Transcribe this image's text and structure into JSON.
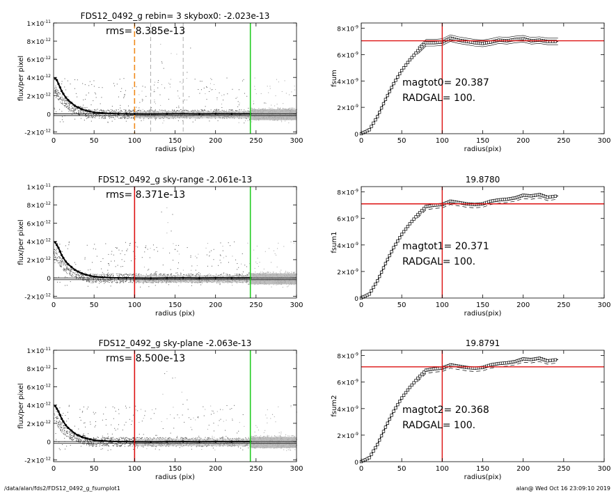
{
  "footer": {
    "path": "/data/alan/fds2/FDS12_0492_g_fsumplot1",
    "stamp": "alan@  Wed Oct 16 23:09:10 2019"
  },
  "chart_data": [
    {
      "type": "scatter",
      "title": "FDS12_0492_g rebin= 3    skybox0: -2.023e-13",
      "annotation": "rms= 8.385e-13",
      "xlabel": "radius (pix)",
      "ylabel": "flux/per pixel",
      "xlim": [
        0,
        300
      ],
      "ylim": [
        -2.2e-12,
        1e-11
      ],
      "x_ticks": [
        "0",
        "50",
        "100",
        "150",
        "200",
        "250",
        "300"
      ],
      "y_ticks": [
        {
          "value": 1e-11,
          "mant": "1×10",
          "exp": "-11"
        },
        {
          "value": 8e-12,
          "mant": "8×10",
          "exp": "-12"
        },
        {
          "value": 6e-12,
          "mant": "6×10",
          "exp": "-12"
        },
        {
          "value": 4e-12,
          "mant": "4×10",
          "exp": "-12"
        },
        {
          "value": 2e-12,
          "mant": "2×10",
          "exp": "-12"
        },
        {
          "value": 0,
          "mant": "0",
          "exp": ""
        },
        {
          "value": -2e-12,
          "mant": "-2×10",
          "exp": "-12"
        }
      ],
      "vlines": [
        {
          "x": 100,
          "color": "#f08a1c",
          "style": "dashed"
        },
        {
          "x": 120,
          "color": "#999999",
          "style": "dashed"
        },
        {
          "x": 160,
          "color": "#999999",
          "style": "dashed"
        },
        {
          "x": 243,
          "color": "#22cc22",
          "style": "solid"
        }
      ],
      "hlines": [
        0,
        -2e-13
      ],
      "profile": {
        "x": [
          2,
          4,
          6,
          8,
          10,
          12,
          15,
          18,
          22,
          26,
          30,
          35,
          40,
          45,
          50,
          60,
          70,
          80,
          90,
          100,
          120,
          140,
          160,
          180,
          200,
          220,
          243
        ],
        "y": [
          3.9e-12,
          3.7e-12,
          3.3e-12,
          2.9e-12,
          2.5e-12,
          2.2e-12,
          1.8e-12,
          1.5e-12,
          1.2e-12,
          9e-13,
          7e-13,
          5e-13,
          3.5e-13,
          2.5e-13,
          1.5e-13,
          8e-14,
          3e-14,
          0,
          0,
          -2e-14,
          -3e-14,
          -1e-14,
          0,
          -2e-14,
          0,
          -1e-14,
          0
        ]
      }
    },
    {
      "type": "line",
      "title": "",
      "annotation_lines": [
        "magtot0=  20.387",
        "RADGAL=    100."
      ],
      "xlabel": "radius(pix)",
      "ylabel": "fsum",
      "xlim": [
        0,
        300
      ],
      "ylim": [
        0,
        8.4e-09
      ],
      "x_ticks": [
        "0",
        "50",
        "100",
        "150",
        "200",
        "250",
        "300"
      ],
      "y_ticks": [
        {
          "value": 0,
          "mant": "0",
          "exp": ""
        },
        {
          "value": 2e-09,
          "mant": "2×10",
          "exp": "-9"
        },
        {
          "value": 4e-09,
          "mant": "4×10",
          "exp": "-9"
        },
        {
          "value": 6e-09,
          "mant": "6×10",
          "exp": "-9"
        },
        {
          "value": 8e-09,
          "mant": "8×10",
          "exp": "-9"
        }
      ],
      "hline": 7.05e-09,
      "vline": 100,
      "series": {
        "x": [
          0,
          10,
          20,
          30,
          40,
          50,
          60,
          70,
          80,
          90,
          100,
          110,
          120,
          130,
          140,
          150,
          160,
          170,
          180,
          190,
          200,
          210,
          220,
          230,
          243
        ],
        "y": [
          0,
          3e-10,
          1.3e-09,
          2.6e-09,
          3.8e-09,
          4.8e-09,
          5.6e-09,
          6.3e-09,
          6.9e-09,
          6.9e-09,
          6.95e-09,
          7.25e-09,
          7.1e-09,
          7e-09,
          6.9e-09,
          6.85e-09,
          6.95e-09,
          7.1e-09,
          7.05e-09,
          7.15e-09,
          7.2e-09,
          7.05e-09,
          7.1e-09,
          7e-09,
          7e-09
        ],
        "envelope": 2.5e-10
      }
    },
    {
      "type": "scatter",
      "title": "FDS12_0492_g sky-range -2.061e-13",
      "annotation": "rms= 8.371e-13",
      "xlabel": "radius (pix)",
      "ylabel": "flux/per pixel",
      "xlim": [
        0,
        300
      ],
      "ylim": [
        -2.2e-12,
        1e-11
      ],
      "x_ticks": [
        "0",
        "50",
        "100",
        "150",
        "200",
        "250",
        "300"
      ],
      "y_ticks": [
        {
          "value": 1e-11,
          "mant": "1×10",
          "exp": "-11"
        },
        {
          "value": 8e-12,
          "mant": "8×10",
          "exp": "-12"
        },
        {
          "value": 6e-12,
          "mant": "6×10",
          "exp": "-12"
        },
        {
          "value": 4e-12,
          "mant": "4×10",
          "exp": "-12"
        },
        {
          "value": 2e-12,
          "mant": "2×10",
          "exp": "-12"
        },
        {
          "value": 0,
          "mant": "0",
          "exp": ""
        },
        {
          "value": -2e-12,
          "mant": "-2×10",
          "exp": "-12"
        }
      ],
      "vlines": [
        {
          "x": 100,
          "color": "#dd1111",
          "style": "solid"
        },
        {
          "x": 243,
          "color": "#22cc22",
          "style": "solid"
        }
      ],
      "hlines": [
        0,
        -2e-13
      ],
      "profile": {
        "x": [
          2,
          4,
          6,
          8,
          10,
          12,
          15,
          18,
          22,
          26,
          30,
          35,
          40,
          45,
          50,
          60,
          70,
          80,
          90,
          100,
          120,
          140,
          160,
          180,
          200,
          220,
          243
        ],
        "y": [
          3.9e-12,
          3.6e-12,
          3.3e-12,
          2.9e-12,
          2.5e-12,
          2.2e-12,
          1.8e-12,
          1.5e-12,
          1.2e-12,
          9e-13,
          7e-13,
          5e-13,
          3.5e-13,
          2.5e-13,
          1.5e-13,
          8e-14,
          3e-14,
          0,
          0,
          -2e-14,
          -3e-14,
          -1e-14,
          0,
          -2e-14,
          0,
          -1e-14,
          0
        ]
      }
    },
    {
      "type": "line",
      "title": "19.8780",
      "annotation_lines": [
        "magtot1=  20.371",
        "RADGAL=    100."
      ],
      "xlabel": "radius(pix)",
      "ylabel": "fsum1",
      "xlim": [
        0,
        300
      ],
      "ylim": [
        0,
        8.4e-09
      ],
      "x_ticks": [
        "0",
        "50",
        "100",
        "150",
        "200",
        "250",
        "300"
      ],
      "y_ticks": [
        {
          "value": 0,
          "mant": "0",
          "exp": ""
        },
        {
          "value": 2e-09,
          "mant": "2×10",
          "exp": "-9"
        },
        {
          "value": 4e-09,
          "mant": "4×10",
          "exp": "-9"
        },
        {
          "value": 6e-09,
          "mant": "6×10",
          "exp": "-9"
        },
        {
          "value": 8e-09,
          "mant": "8×10",
          "exp": "-9"
        }
      ],
      "hline": 7.1e-09,
      "vline": 100,
      "series": {
        "x": [
          0,
          10,
          20,
          30,
          40,
          50,
          60,
          70,
          80,
          90,
          100,
          110,
          120,
          130,
          140,
          150,
          160,
          170,
          180,
          190,
          200,
          210,
          220,
          230,
          243
        ],
        "y": [
          0,
          3e-10,
          1.3e-09,
          2.6e-09,
          3.8e-09,
          4.8e-09,
          5.6e-09,
          6.3e-09,
          6.9e-09,
          7e-09,
          7.05e-09,
          7.3e-09,
          7.2e-09,
          7.1e-09,
          7.05e-09,
          7.1e-09,
          7.3e-09,
          7.4e-09,
          7.45e-09,
          7.55e-09,
          7.75e-09,
          7.7e-09,
          7.8e-09,
          7.6e-09,
          7.7e-09
        ]
      }
    },
    {
      "type": "scatter",
      "title": "FDS12_0492_g sky-plane -2.063e-13",
      "annotation": "rms= 8.500e-13",
      "xlabel": "radius (pix)",
      "ylabel": "flux/per pixel",
      "xlim": [
        0,
        300
      ],
      "ylim": [
        -2.2e-12,
        1e-11
      ],
      "x_ticks": [
        "0",
        "50",
        "100",
        "150",
        "200",
        "250",
        "300"
      ],
      "y_ticks": [
        {
          "value": 1e-11,
          "mant": "1×10",
          "exp": "-11"
        },
        {
          "value": 8e-12,
          "mant": "8×10",
          "exp": "-12"
        },
        {
          "value": 6e-12,
          "mant": "6×10",
          "exp": "-12"
        },
        {
          "value": 4e-12,
          "mant": "4×10",
          "exp": "-12"
        },
        {
          "value": 2e-12,
          "mant": "2×10",
          "exp": "-12"
        },
        {
          "value": 0,
          "mant": "0",
          "exp": ""
        },
        {
          "value": -2e-12,
          "mant": "-2×10",
          "exp": "-12"
        }
      ],
      "vlines": [
        {
          "x": 100,
          "color": "#dd1111",
          "style": "solid"
        },
        {
          "x": 243,
          "color": "#22cc22",
          "style": "solid"
        }
      ],
      "hlines": [
        0,
        -2e-13
      ],
      "profile": {
        "x": [
          2,
          4,
          6,
          8,
          10,
          12,
          15,
          18,
          22,
          26,
          30,
          35,
          40,
          45,
          50,
          60,
          70,
          80,
          90,
          100,
          120,
          140,
          160,
          180,
          200,
          220,
          243
        ],
        "y": [
          3.9e-12,
          3.6e-12,
          3.3e-12,
          2.9e-12,
          2.5e-12,
          2.2e-12,
          1.8e-12,
          1.5e-12,
          1.2e-12,
          9e-13,
          7e-13,
          5e-13,
          3.5e-13,
          2.5e-13,
          1.5e-13,
          8e-14,
          3e-14,
          0,
          0,
          -2e-14,
          -3e-14,
          -1e-14,
          0,
          -2e-14,
          0,
          -1e-14,
          0
        ]
      }
    },
    {
      "type": "line",
      "title": "19.8791",
      "annotation_lines": [
        "magtot2=  20.368",
        "RADGAL=    100."
      ],
      "xlabel": "radius(pix)",
      "ylabel": "fsum2",
      "xlim": [
        0,
        300
      ],
      "ylim": [
        0,
        8.4e-09
      ],
      "x_ticks": [
        "0",
        "50",
        "100",
        "150",
        "200",
        "250",
        "300"
      ],
      "y_ticks": [
        {
          "value": 0,
          "mant": "0",
          "exp": ""
        },
        {
          "value": 2e-09,
          "mant": "2×10",
          "exp": "-9"
        },
        {
          "value": 4e-09,
          "mant": "4×10",
          "exp": "-9"
        },
        {
          "value": 6e-09,
          "mant": "6×10",
          "exp": "-9"
        },
        {
          "value": 8e-09,
          "mant": "8×10",
          "exp": "-9"
        }
      ],
      "hline": 7.15e-09,
      "vline": 100,
      "series": {
        "x": [
          0,
          10,
          20,
          30,
          40,
          50,
          60,
          70,
          80,
          90,
          100,
          110,
          120,
          130,
          140,
          150,
          160,
          170,
          180,
          190,
          200,
          210,
          220,
          230,
          243
        ],
        "y": [
          0,
          3e-10,
          1.3e-09,
          2.6e-09,
          3.8e-09,
          4.8e-09,
          5.6e-09,
          6.3e-09,
          6.9e-09,
          7e-09,
          7.05e-09,
          7.3e-09,
          7.2e-09,
          7.1e-09,
          7.05e-09,
          7.1e-09,
          7.3e-09,
          7.4e-09,
          7.45e-09,
          7.55e-09,
          7.75e-09,
          7.7e-09,
          7.8e-09,
          7.6e-09,
          7.7e-09
        ]
      }
    }
  ]
}
